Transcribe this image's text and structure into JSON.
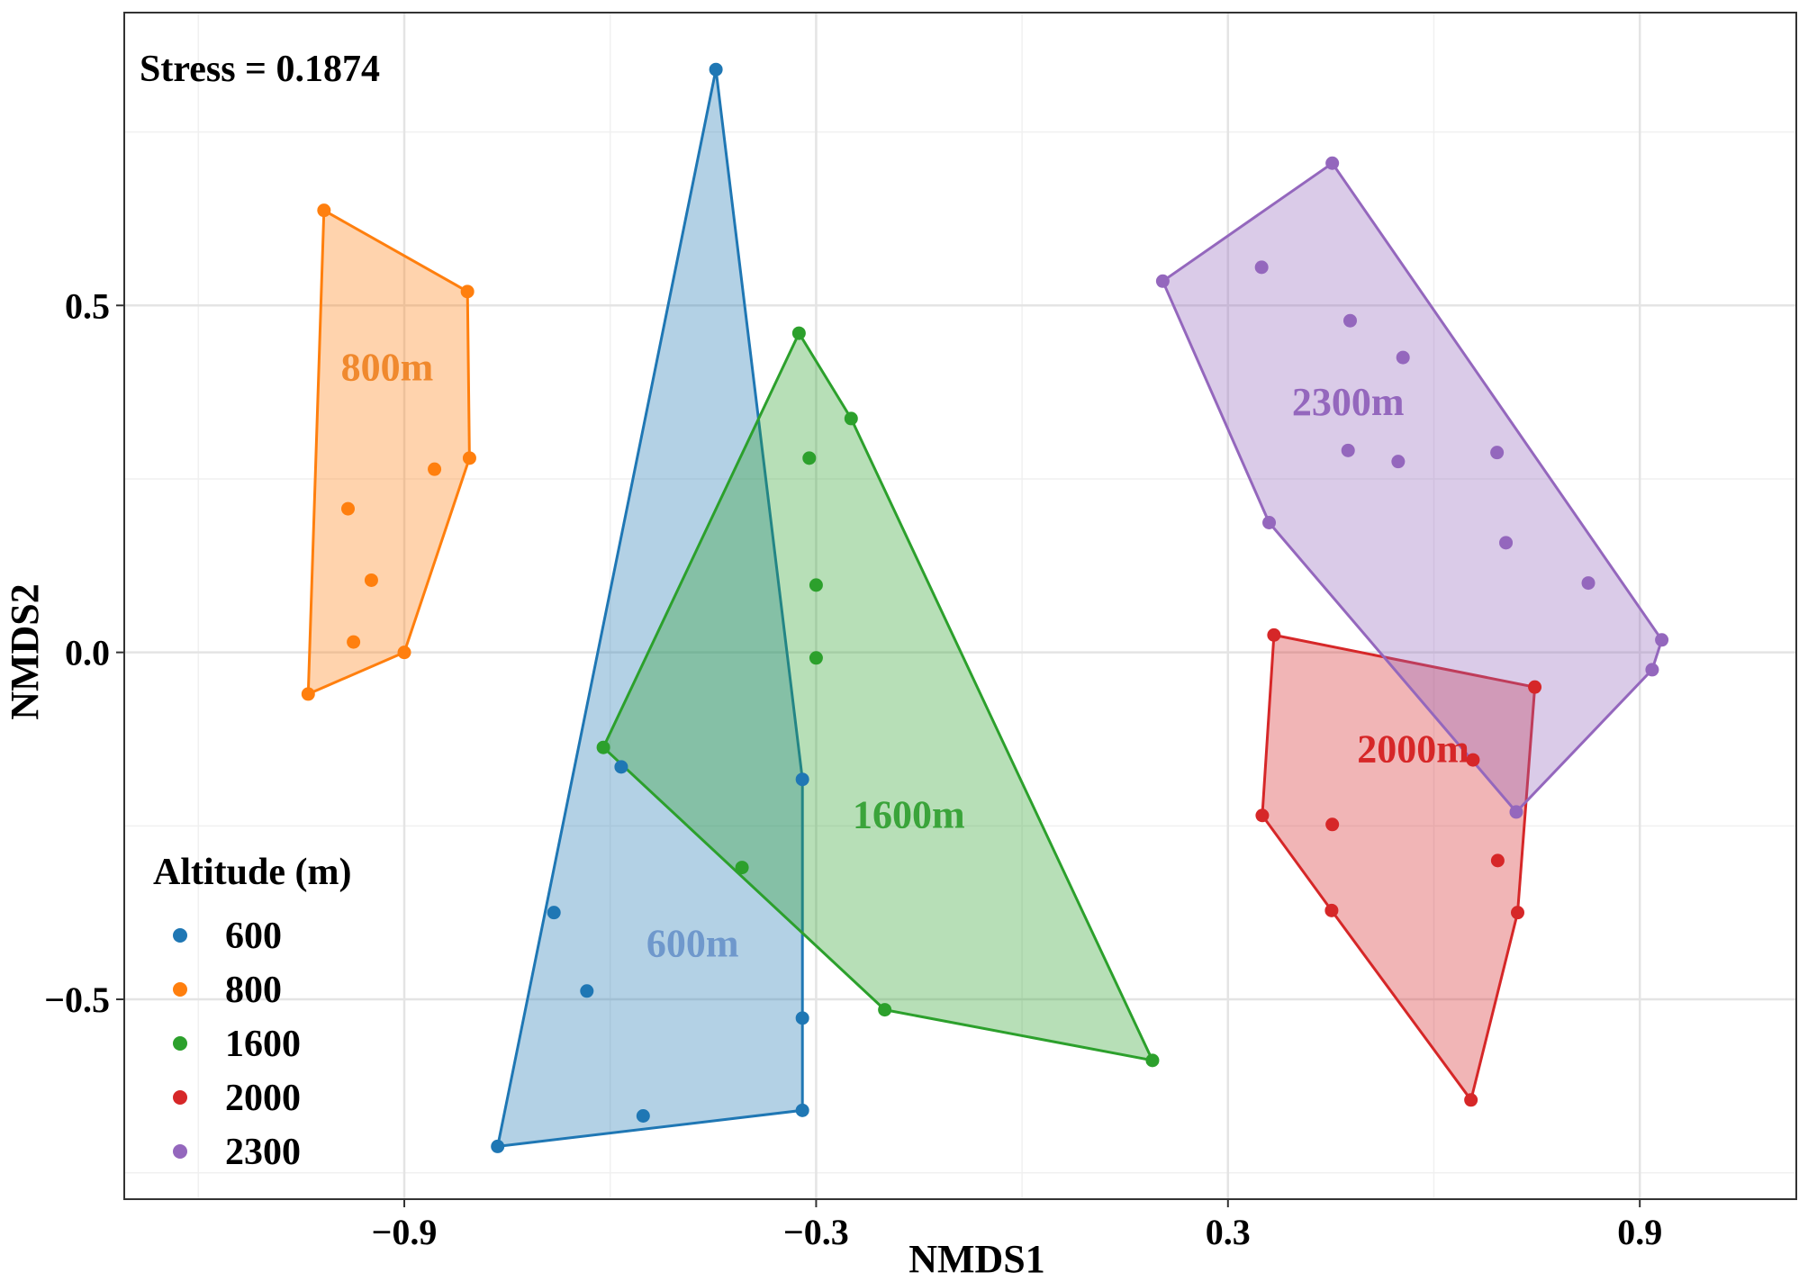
{
  "chart_data": {
    "type": "scatter",
    "stress_label": "Stress = 0.1874",
    "xlabel": "NMDS1",
    "ylabel": "NMDS2",
    "xlim": [
      -1.308,
      1.128
    ],
    "ylim": [
      -0.788,
      0.922
    ],
    "xticks": [
      -0.9,
      -0.3,
      0.3,
      0.9
    ],
    "xtick_labels": [
      "−0.9",
      "−0.3",
      "0.3",
      "0.9"
    ],
    "yticks": [
      -0.5,
      0.0,
      0.5
    ],
    "ytick_labels": [
      "−0.5",
      "0.0",
      "0.5"
    ],
    "grid": true,
    "legend": {
      "title": "Altitude (m)",
      "position": "bottom-left",
      "entries": [
        "600",
        "800",
        "1600",
        "2000",
        "2300"
      ]
    },
    "series": [
      {
        "name": "600",
        "group_label": "600m",
        "color": "#1f77b4",
        "label_color": "#6f98cc",
        "label_pos": [
          -0.48,
          -0.425
        ],
        "points": [
          [
            -0.446,
            0.84
          ],
          [
            -0.764,
            -0.712
          ],
          [
            -0.682,
            -0.375
          ],
          [
            -0.634,
            -0.488
          ],
          [
            -0.584,
            -0.165
          ],
          [
            -0.552,
            -0.668
          ],
          [
            -0.32,
            -0.183
          ],
          [
            -0.32,
            -0.527
          ],
          [
            -0.32,
            -0.66
          ]
        ],
        "hull": [
          [
            -0.446,
            0.84
          ],
          [
            -0.32,
            -0.183
          ],
          [
            -0.32,
            -0.66
          ],
          [
            -0.764,
            -0.712
          ]
        ]
      },
      {
        "name": "800",
        "group_label": "800m",
        "color": "#ff7f0e",
        "label_color": "#f0892e",
        "label_pos": [
          -0.925,
          0.405
        ],
        "points": [
          [
            -1.04,
            -0.06
          ],
          [
            -0.9,
            0.0
          ],
          [
            -0.974,
            0.015
          ],
          [
            -0.948,
            0.104
          ],
          [
            -0.982,
            0.207
          ],
          [
            -0.856,
            0.264
          ],
          [
            -0.805,
            0.28
          ],
          [
            -0.808,
            0.52
          ],
          [
            -1.017,
            0.637
          ]
        ],
        "hull": [
          [
            -1.04,
            -0.06
          ],
          [
            -0.9,
            0.0
          ],
          [
            -0.805,
            0.28
          ],
          [
            -0.808,
            0.52
          ],
          [
            -1.017,
            0.637
          ]
        ]
      },
      {
        "name": "1600",
        "group_label": "1600m",
        "color": "#2ca02c",
        "label_color": "#3aa43a",
        "label_pos": [
          -0.165,
          -0.24
        ],
        "points": [
          [
            -0.61,
            -0.137
          ],
          [
            -0.408,
            -0.31
          ],
          [
            -0.325,
            0.46
          ],
          [
            -0.31,
            0.28
          ],
          [
            -0.3,
            0.097
          ],
          [
            -0.3,
            -0.008
          ],
          [
            -0.249,
            0.337
          ],
          [
            -0.2,
            -0.515
          ],
          [
            0.19,
            -0.588
          ]
        ],
        "hull": [
          [
            -0.325,
            0.46
          ],
          [
            -0.249,
            0.337
          ],
          [
            0.19,
            -0.588
          ],
          [
            -0.2,
            -0.515
          ],
          [
            -0.61,
            -0.137
          ]
        ]
      },
      {
        "name": "2000",
        "group_label": "2000m",
        "color": "#d62728",
        "label_color": "#d62728",
        "label_pos": [
          0.57,
          -0.145
        ],
        "points": [
          [
            0.367,
            0.025
          ],
          [
            0.35,
            -0.235
          ],
          [
            0.451,
            -0.372
          ],
          [
            0.452,
            -0.248
          ],
          [
            0.657,
            -0.155
          ],
          [
            0.654,
            -0.645
          ],
          [
            0.693,
            -0.3
          ],
          [
            0.722,
            -0.375
          ],
          [
            0.747,
            -0.05
          ]
        ],
        "hull": [
          [
            0.367,
            0.025
          ],
          [
            0.747,
            -0.05
          ],
          [
            0.722,
            -0.375
          ],
          [
            0.654,
            -0.645
          ],
          [
            0.451,
            -0.372
          ],
          [
            0.35,
            -0.235
          ]
        ]
      },
      {
        "name": "2300",
        "group_label": "2300m",
        "color": "#9467bd",
        "label_color": "#9467bd",
        "label_pos": [
          0.475,
          0.355
        ],
        "points": [
          [
            0.205,
            0.535
          ],
          [
            0.36,
            0.187
          ],
          [
            0.349,
            0.555
          ],
          [
            0.452,
            0.705
          ],
          [
            0.478,
            0.478
          ],
          [
            0.475,
            0.291
          ],
          [
            0.555,
            0.425
          ],
          [
            0.548,
            0.275
          ],
          [
            0.692,
            0.288
          ],
          [
            0.705,
            0.158
          ],
          [
            0.825,
            0.1
          ],
          [
            0.932,
            0.018
          ],
          [
            0.918,
            -0.025
          ],
          [
            0.72,
            -0.23
          ]
        ],
        "hull": [
          [
            0.452,
            0.705
          ],
          [
            0.932,
            0.018
          ],
          [
            0.918,
            -0.025
          ],
          [
            0.72,
            -0.23
          ],
          [
            0.36,
            0.187
          ],
          [
            0.205,
            0.535
          ]
        ]
      }
    ]
  }
}
